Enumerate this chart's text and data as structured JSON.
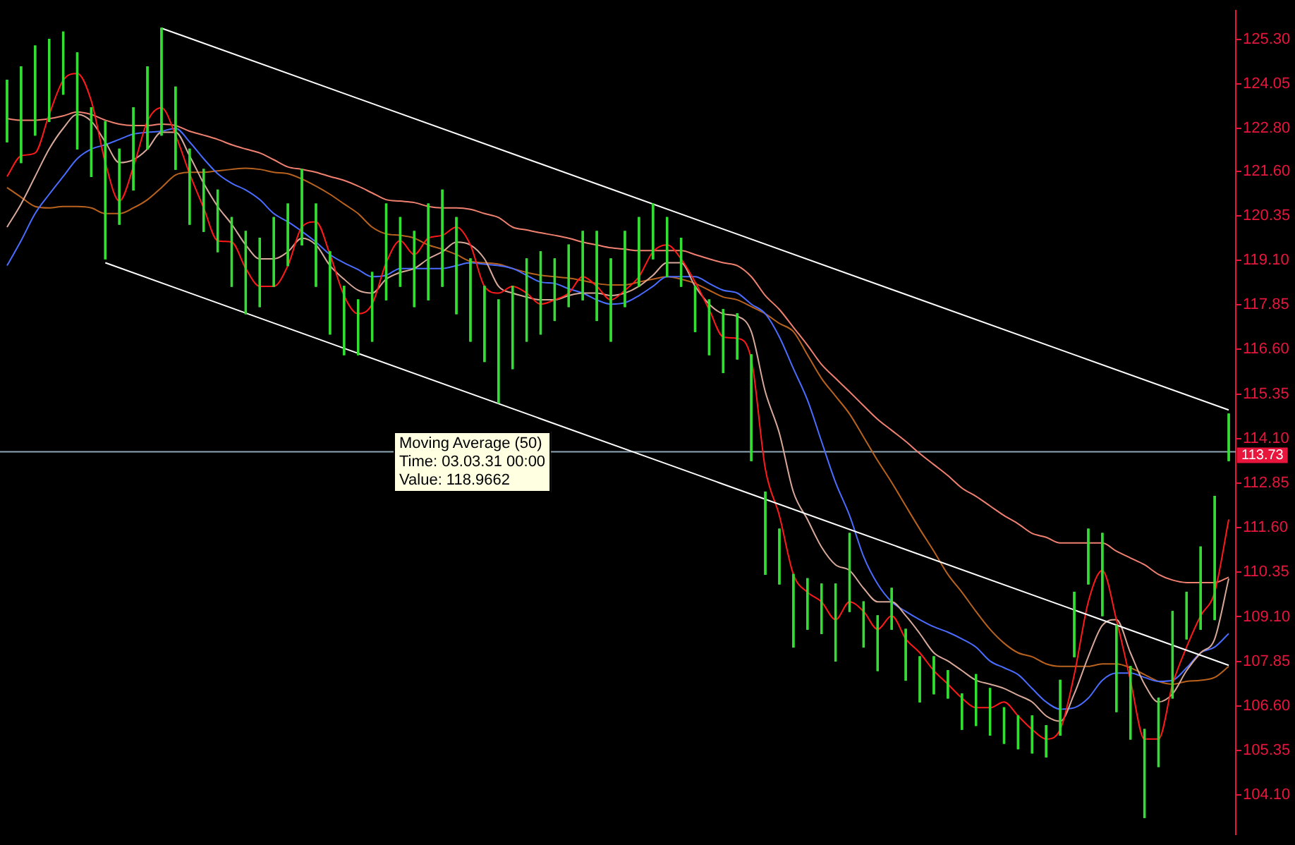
{
  "chart_data": {
    "type": "candlestick",
    "categories": [
      null,
      null,
      null,
      null,
      null,
      null,
      null,
      null,
      null,
      null,
      null,
      null,
      null,
      null,
      null,
      null,
      null,
      null,
      null,
      null,
      null,
      null,
      null,
      null,
      null,
      null,
      null,
      null,
      null,
      null,
      null,
      null,
      null,
      null,
      null,
      null,
      null,
      null,
      null,
      null,
      null,
      null,
      null,
      null,
      null,
      null,
      null,
      null,
      null,
      null,
      null,
      null,
      null,
      null,
      null,
      null,
      null,
      null,
      null,
      null,
      null,
      null,
      null,
      null,
      null,
      null,
      null,
      null,
      null,
      null,
      null,
      null,
      null,
      null,
      null,
      null,
      null,
      null,
      null,
      null,
      null,
      null,
      null,
      null,
      null,
      null,
      null,
      null
    ],
    "color": "#33dd33",
    "ohlc": [
      [
        124.15,
        124.15,
        122.42,
        122.42
      ],
      [
        124.53,
        124.53,
        121.84,
        121.84
      ],
      [
        125.11,
        125.11,
        122.61,
        122.61
      ],
      [
        125.3,
        125.3,
        122.99,
        122.99
      ],
      [
        125.5,
        125.5,
        123.76,
        123.76
      ],
      [
        124.92,
        124.92,
        122.22,
        122.22
      ],
      [
        123.38,
        123.38,
        121.45,
        121.45
      ],
      [
        122.99,
        122.99,
        119.14,
        119.14
      ],
      [
        122.22,
        122.22,
        120.11,
        120.11
      ],
      [
        123.38,
        123.38,
        121.07,
        121.07
      ],
      [
        124.53,
        124.53,
        122.22,
        122.22
      ],
      [
        125.61,
        125.61,
        122.61,
        122.61
      ],
      [
        123.96,
        123.96,
        121.65,
        121.65
      ],
      [
        122.22,
        122.22,
        120.11,
        120.11
      ],
      [
        121.65,
        121.65,
        119.91,
        119.91
      ],
      [
        121.07,
        121.07,
        119.34,
        119.34
      ],
      [
        120.3,
        120.3,
        118.37,
        118.37
      ],
      [
        119.91,
        119.91,
        117.6,
        117.6
      ],
      [
        119.72,
        119.72,
        117.8,
        117.8
      ],
      [
        120.3,
        120.3,
        118.37,
        118.37
      ],
      [
        120.68,
        120.68,
        118.95,
        118.95
      ],
      [
        121.65,
        121.65,
        119.53,
        119.53
      ],
      [
        120.68,
        120.68,
        118.37,
        118.37
      ],
      [
        119.34,
        119.34,
        117.03,
        117.03
      ],
      [
        118.37,
        118.37,
        116.45,
        116.45
      ],
      [
        117.99,
        117.99,
        116.45,
        116.45
      ],
      [
        118.76,
        118.76,
        116.83,
        116.83
      ],
      [
        120.68,
        120.68,
        117.99,
        117.99
      ],
      [
        120.3,
        120.3,
        118.37,
        118.37
      ],
      [
        119.91,
        119.91,
        117.8,
        117.8
      ],
      [
        120.68,
        120.68,
        117.99,
        117.99
      ],
      [
        121.07,
        121.07,
        118.37,
        118.37
      ],
      [
        120.3,
        120.3,
        117.6,
        117.6
      ],
      [
        119.14,
        119.14,
        116.83,
        116.83
      ],
      [
        118.37,
        118.37,
        116.26,
        116.26
      ],
      [
        117.99,
        117.99,
        115.1,
        115.1
      ],
      [
        118.37,
        118.37,
        116.06,
        116.06
      ],
      [
        119.14,
        119.14,
        116.83,
        116.83
      ],
      [
        119.34,
        119.34,
        117.03,
        117.03
      ],
      [
        119.14,
        119.14,
        117.41,
        117.41
      ],
      [
        119.53,
        119.53,
        117.8,
        117.8
      ],
      [
        119.91,
        119.91,
        117.99,
        117.99
      ],
      [
        119.91,
        119.91,
        117.41,
        117.41
      ],
      [
        119.14,
        119.14,
        116.83,
        116.83
      ],
      [
        119.91,
        119.91,
        117.8,
        117.8
      ],
      [
        120.3,
        120.3,
        118.37,
        118.37
      ],
      [
        120.68,
        120.68,
        119.14,
        119.14
      ],
      [
        120.3,
        120.3,
        118.64,
        118.64
      ],
      [
        119.72,
        119.72,
        118.37,
        118.37
      ],
      [
        118.37,
        118.37,
        117.1,
        117.1
      ],
      [
        117.99,
        117.99,
        116.45,
        116.45
      ],
      [
        117.72,
        117.72,
        115.95,
        115.95
      ],
      [
        117.6,
        117.6,
        116.33,
        116.33
      ],
      [
        116.45,
        116.45,
        113.48,
        113.48
      ],
      [
        112.6,
        112.6,
        110.29,
        110.29
      ],
      [
        111.56,
        111.56,
        110.02,
        110.02
      ],
      [
        110.29,
        110.29,
        108.25,
        108.25
      ],
      [
        110.17,
        110.17,
        108.75,
        108.75
      ],
      [
        110.02,
        110.02,
        108.63,
        108.63
      ],
      [
        110.02,
        110.02,
        107.86,
        107.86
      ],
      [
        111.44,
        111.44,
        109.25,
        109.25
      ],
      [
        109.52,
        109.52,
        108.25,
        108.25
      ],
      [
        109.13,
        109.13,
        107.59,
        107.59
      ],
      [
        109.9,
        109.9,
        108.75,
        108.75
      ],
      [
        108.75,
        108.75,
        107.32,
        107.32
      ],
      [
        107.98,
        107.98,
        106.71,
        106.71
      ],
      [
        107.98,
        107.98,
        106.94,
        106.94
      ],
      [
        107.59,
        107.59,
        106.82,
        106.82
      ],
      [
        106.94,
        106.94,
        105.94,
        105.94
      ],
      [
        107.48,
        107.48,
        106.05,
        106.05
      ],
      [
        107.09,
        107.09,
        105.78,
        105.78
      ],
      [
        106.55,
        106.55,
        105.55,
        105.55
      ],
      [
        106.32,
        106.32,
        105.4,
        105.4
      ],
      [
        106.32,
        106.32,
        105.28,
        105.28
      ],
      [
        106.05,
        106.05,
        105.17,
        105.17
      ],
      [
        107.32,
        107.32,
        105.78,
        105.78
      ],
      [
        109.79,
        109.79,
        107.98,
        107.98
      ],
      [
        111.56,
        111.56,
        110.02,
        110.02
      ],
      [
        111.44,
        111.44,
        109.13,
        109.13
      ],
      [
        108.86,
        108.86,
        106.44,
        106.44
      ],
      [
        107.71,
        107.71,
        105.67,
        105.67
      ],
      [
        105.94,
        105.94,
        103.47,
        103.47
      ],
      [
        106.82,
        106.82,
        104.9,
        104.9
      ],
      [
        109.25,
        109.25,
        106.82,
        106.82
      ],
      [
        109.79,
        109.79,
        108.48,
        108.48
      ],
      [
        111.06,
        111.06,
        108.75,
        108.75
      ],
      [
        112.48,
        112.48,
        109.02,
        109.02
      ],
      [
        114.79,
        114.79,
        113.48,
        113.48
      ]
    ],
    "series": [
      {
        "type": "line",
        "color": "#f08070",
        "values": [
          123.07,
          123.03,
          123.03,
          123.07,
          123.15,
          123.26,
          123.19,
          123.03,
          122.92,
          122.88,
          122.88,
          122.92,
          122.88,
          122.72,
          122.61,
          122.49,
          122.34,
          122.22,
          122.11,
          121.92,
          121.72,
          121.65,
          121.57,
          121.45,
          121.34,
          121.18,
          120.99,
          120.8,
          120.76,
          120.72,
          120.61,
          120.57,
          120.57,
          120.53,
          120.41,
          120.3,
          120.03,
          119.95,
          119.87,
          119.8,
          119.72,
          119.61,
          119.53,
          119.45,
          119.41,
          119.37,
          119.37,
          119.37,
          119.37,
          119.26,
          119.14,
          119.03,
          118.95,
          118.64,
          118.11,
          117.72,
          117.22,
          116.72,
          116.18,
          115.79,
          115.41,
          115.02,
          114.64,
          114.33,
          114.02,
          113.68,
          113.37,
          113.06,
          112.71,
          112.48,
          112.21,
          111.94,
          111.71,
          111.44,
          111.33,
          111.17,
          111.17,
          111.17,
          111.17,
          110.94,
          110.75,
          110.56,
          110.29,
          110.13,
          110.06,
          110.06,
          110.06,
          110.21
        ]
      },
      {
        "type": "line",
        "color": "#b8621e",
        "values": [
          121.14,
          120.87,
          120.61,
          120.57,
          120.61,
          120.61,
          120.57,
          120.41,
          120.41,
          120.57,
          120.8,
          121.14,
          121.49,
          121.57,
          121.57,
          121.61,
          121.65,
          121.68,
          121.65,
          121.57,
          121.53,
          121.38,
          121.18,
          120.95,
          120.68,
          120.41,
          120.03,
          119.84,
          119.8,
          119.72,
          119.53,
          119.41,
          119.26,
          119.07,
          119.03,
          118.99,
          118.87,
          118.76,
          118.68,
          118.64,
          118.6,
          118.53,
          118.45,
          118.41,
          118.41,
          118.49,
          118.57,
          118.64,
          118.57,
          118.45,
          118.26,
          118.07,
          117.99,
          117.8,
          117.6,
          117.33,
          117.1,
          116.45,
          115.79,
          115.29,
          114.79,
          114.14,
          113.48,
          112.87,
          112.21,
          111.56,
          110.94,
          110.29,
          109.79,
          109.25,
          108.75,
          108.36,
          108.09,
          107.98,
          107.78,
          107.71,
          107.71,
          107.71,
          107.78,
          107.78,
          107.67,
          107.48,
          107.29,
          107.21,
          107.29,
          107.32,
          107.4,
          107.71
        ]
      },
      {
        "type": "line",
        "color": "#4a6cff",
        "values": [
          118.95,
          119.65,
          120.41,
          120.95,
          121.45,
          121.95,
          122.22,
          122.34,
          122.49,
          122.64,
          122.69,
          122.72,
          122.8,
          122.42,
          121.95,
          121.53,
          121.26,
          121.07,
          120.8,
          120.41,
          120.18,
          119.91,
          119.61,
          119.26,
          119.03,
          118.84,
          118.64,
          118.68,
          118.87,
          118.87,
          118.87,
          118.87,
          118.95,
          119.03,
          118.99,
          118.95,
          118.87,
          118.68,
          118.49,
          118.45,
          118.3,
          118.18,
          117.99,
          117.87,
          117.91,
          118.11,
          118.37,
          118.64,
          118.64,
          118.64,
          118.45,
          118.26,
          118.18,
          117.87,
          117.6,
          116.95,
          116.06,
          115.18,
          114.02,
          112.87,
          111.94,
          110.79,
          110.02,
          109.52,
          109.25,
          109.02,
          108.82,
          108.67,
          108.48,
          108.25,
          107.86,
          107.67,
          107.48,
          107.09,
          106.71,
          106.51,
          106.55,
          106.82,
          107.32,
          107.52,
          107.52,
          107.4,
          107.29,
          107.32,
          107.67,
          108.09,
          108.25,
          108.63
        ]
      },
      {
        "type": "line",
        "color": "#d8a898",
        "values": [
          120.03,
          120.68,
          121.45,
          122.22,
          122.8,
          123.19,
          123.0,
          122.42,
          121.84,
          121.92,
          122.22,
          122.69,
          122.69,
          122.03,
          121.26,
          120.61,
          120.11,
          119.53,
          119.14,
          119.14,
          119.34,
          119.72,
          119.53,
          118.95,
          118.57,
          118.26,
          118.18,
          118.57,
          118.76,
          118.87,
          119.14,
          119.34,
          119.61,
          119.53,
          119.14,
          118.37,
          118.18,
          118.07,
          117.99,
          117.99,
          118.11,
          118.18,
          118.18,
          118.11,
          118.18,
          118.37,
          118.68,
          119.03,
          119.03,
          118.37,
          117.87,
          117.6,
          117.53,
          117.1,
          115.41,
          114.25,
          112.6,
          111.83,
          111.06,
          110.56,
          110.4,
          109.9,
          109.52,
          109.52,
          109.13,
          108.63,
          108.09,
          107.86,
          107.59,
          107.32,
          107.21,
          107.09,
          106.9,
          106.71,
          106.32,
          106.17,
          106.94,
          107.98,
          108.86,
          109.02,
          108.09,
          107.21,
          106.71,
          106.94,
          107.59,
          108.09,
          108.48,
          110.17
        ]
      },
      {
        "type": "line",
        "color": "#ff1a1a",
        "values": [
          121.45,
          122.03,
          122.11,
          123.19,
          124.15,
          124.34,
          123.57,
          121.84,
          120.76,
          121.72,
          123.0,
          123.38,
          122.61,
          121.53,
          120.57,
          119.65,
          119.61,
          118.87,
          118.37,
          118.37,
          118.95,
          120.03,
          120.18,
          119.26,
          118.11,
          117.6,
          117.87,
          119.03,
          119.65,
          119.26,
          119.72,
          119.8,
          120.03,
          119.53,
          118.37,
          118.18,
          118.37,
          118.18,
          117.87,
          117.99,
          118.18,
          118.64,
          118.37,
          117.99,
          118.26,
          118.64,
          119.34,
          119.53,
          119.14,
          118.49,
          117.72,
          116.95,
          116.91,
          116.33,
          113.25,
          111.94,
          110.29,
          109.79,
          109.52,
          109.02,
          109.52,
          109.25,
          108.75,
          109.13,
          108.48,
          108.09,
          107.59,
          107.21,
          106.82,
          106.55,
          106.55,
          106.71,
          106.32,
          105.94,
          105.67,
          105.94,
          107.48,
          109.52,
          110.4,
          109.02,
          107.32,
          105.67,
          105.67,
          107.21,
          108.25,
          109.13,
          109.79,
          111.83
        ]
      },
      {
        "type": "line",
        "color": "#ffffff",
        "values": [
          null,
          null,
          null,
          null,
          null,
          null,
          null,
          null,
          null,
          null,
          null,
          125.61,
          null,
          null,
          null,
          null,
          null,
          null,
          null,
          null,
          null,
          null,
          null,
          null,
          null,
          null,
          null,
          null,
          null,
          null,
          null,
          null,
          null,
          null,
          null,
          null,
          null,
          null,
          null,
          null,
          null,
          null,
          null,
          null,
          null,
          null,
          null,
          null,
          null,
          null,
          null,
          null,
          null,
          null,
          null,
          null,
          null,
          null,
          null,
          null,
          null,
          null,
          null,
          null,
          null,
          null,
          null,
          null,
          null,
          null,
          null,
          null,
          null,
          null,
          null,
          null,
          null,
          null,
          null,
          null,
          null,
          null,
          null,
          null,
          null,
          null,
          null,
          114.9
        ]
      },
      {
        "type": "line",
        "color": "#ffffff",
        "values": [
          null,
          null,
          null,
          null,
          null,
          null,
          null,
          119.03,
          null,
          null,
          null,
          null,
          null,
          null,
          null,
          null,
          null,
          null,
          null,
          null,
          null,
          null,
          null,
          null,
          null,
          null,
          null,
          null,
          null,
          null,
          null,
          null,
          null,
          null,
          null,
          null,
          null,
          null,
          null,
          null,
          null,
          null,
          null,
          null,
          null,
          null,
          null,
          null,
          null,
          null,
          null,
          null,
          null,
          null,
          null,
          null,
          null,
          null,
          null,
          null,
          null,
          null,
          null,
          null,
          null,
          null,
          null,
          null,
          null,
          null,
          null,
          null,
          null,
          null,
          null,
          null,
          null,
          null,
          null,
          null,
          null,
          null,
          null,
          null,
          null,
          null,
          null,
          107.74
        ]
      }
    ],
    "marker": "none",
    "ylim": [
      103.0,
      126.1
    ],
    "yticks": [
      {
        "value": 104.1,
        "label": "104.10"
      },
      {
        "value": 105.35,
        "label": "105.35"
      },
      {
        "value": 106.6,
        "label": "106.60"
      },
      {
        "value": 107.85,
        "label": "107.85"
      },
      {
        "value": 109.1,
        "label": "109.10"
      },
      {
        "value": 110.35,
        "label": "110.35"
      },
      {
        "value": 111.6,
        "label": "111.60"
      },
      {
        "value": 112.85,
        "label": "112.85"
      },
      {
        "value": 114.1,
        "label": "114.10"
      },
      {
        "value": 115.35,
        "label": "115.35"
      },
      {
        "value": 116.6,
        "label": "116.60"
      },
      {
        "value": 117.85,
        "label": "117.85"
      },
      {
        "value": 119.1,
        "label": "119.10"
      },
      {
        "value": 120.35,
        "label": "120.35"
      },
      {
        "value": 121.6,
        "label": "121.60"
      },
      {
        "value": 122.8,
        "label": "122.80"
      },
      {
        "value": 124.05,
        "label": "124.05"
      },
      {
        "value": 125.3,
        "label": "125.30"
      }
    ],
    "tick_labels": "y",
    "grid": false,
    "legend": false,
    "ref_lines": [
      {
        "axis": "y",
        "value": 113.73,
        "label": "113.73",
        "color": "#8fa8b8"
      }
    ],
    "annotations": [
      "Moving Average (50)\nTime: 03.03.31 00:00\nValue: 118.9662"
    ]
  }
}
